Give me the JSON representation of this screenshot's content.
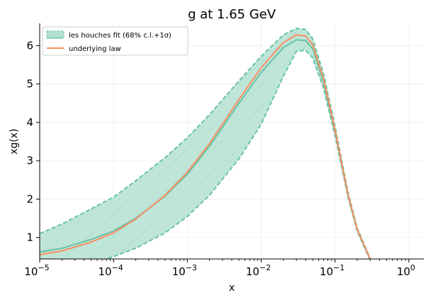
{
  "chart_data": {
    "type": "line",
    "title": "g at 1.65 GeV",
    "xlabel": "x",
    "ylabel": "xg(x)",
    "xscale": "log",
    "xlim": [
      1e-05,
      1.6
    ],
    "ylim": [
      0.44,
      6.58
    ],
    "xticks": [
      {
        "value": 1e-05,
        "label": "10",
        "exp": "−5"
      },
      {
        "value": 0.0001,
        "label": "10",
        "exp": "−4"
      },
      {
        "value": 0.001,
        "label": "10",
        "exp": "−3"
      },
      {
        "value": 0.01,
        "label": "10",
        "exp": "−2"
      },
      {
        "value": 0.1,
        "label": "10",
        "exp": "−1"
      },
      {
        "value": 1,
        "label": "10",
        "exp": "0"
      }
    ],
    "yticks": [
      {
        "value": 1,
        "label": "1"
      },
      {
        "value": 2,
        "label": "2"
      },
      {
        "value": 3,
        "label": "3"
      },
      {
        "value": 4,
        "label": "4"
      },
      {
        "value": 5,
        "label": "5"
      },
      {
        "value": 6,
        "label": "6"
      }
    ],
    "grid": true,
    "legend_position": "top-left",
    "colors": {
      "band": "#66c2a5",
      "band_fill": "#b3e0d1",
      "law": "#fc8d62"
    },
    "x": [
      1e-05,
      2e-05,
      5e-05,
      0.0001,
      0.0002,
      0.0005,
      0.001,
      0.002,
      0.005,
      0.01,
      0.02,
      0.03,
      0.04,
      0.05,
      0.07,
      0.1,
      0.15,
      0.2,
      0.3
    ],
    "series": [
      {
        "name": "les houches fit (68% c.l.+1σ)",
        "role": "band",
        "central": [
          0.62,
          0.72,
          0.95,
          1.17,
          1.5,
          2.08,
          2.65,
          3.38,
          4.5,
          5.3,
          5.95,
          6.15,
          6.13,
          5.92,
          5.05,
          3.75,
          2.1,
          1.2,
          0.42
        ],
        "upper": [
          1.1,
          1.35,
          1.75,
          2.05,
          2.48,
          3.08,
          3.6,
          4.2,
          5.08,
          5.72,
          6.28,
          6.45,
          6.42,
          6.18,
          5.25,
          3.9,
          2.18,
          1.25,
          0.45
        ],
        "lower": [
          0.05,
          0.15,
          0.32,
          0.5,
          0.72,
          1.12,
          1.55,
          2.1,
          3.05,
          3.95,
          5.2,
          5.85,
          5.88,
          5.68,
          4.88,
          3.65,
          2.05,
          1.16,
          0.4
        ]
      },
      {
        "name": "underlying law",
        "role": "line",
        "values": [
          0.55,
          0.65,
          0.88,
          1.12,
          1.48,
          2.1,
          2.7,
          3.45,
          4.6,
          5.42,
          6.08,
          6.28,
          6.25,
          6.02,
          5.12,
          3.8,
          2.12,
          1.21,
          0.43
        ]
      }
    ]
  }
}
